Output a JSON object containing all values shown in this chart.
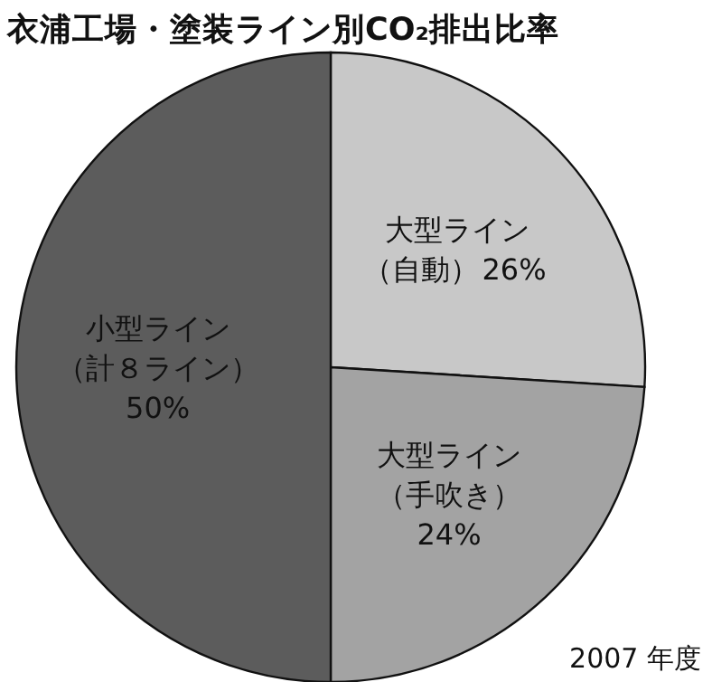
{
  "chart_data": {
    "type": "pie",
    "title": "衣浦工場・塗装ライン別CO₂排出比率",
    "categories": [
      "大型ライン（自動）",
      "大型ライン（手吹き）",
      "小型ライン（計８ライン）"
    ],
    "values": [
      26,
      24,
      50
    ],
    "colors": [
      "#c8c8c8",
      "#a3a3a3",
      "#5c5c5c"
    ],
    "value_labels": [
      "26%",
      "24%",
      "50%"
    ],
    "annotations": [
      "2007 年度"
    ]
  }
}
